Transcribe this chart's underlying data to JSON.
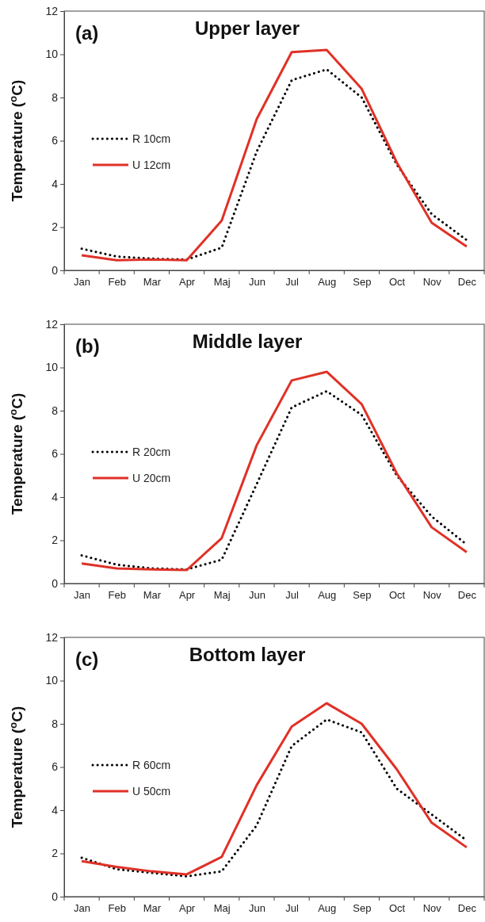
{
  "chart_data": [
    {
      "type": "line",
      "title": "Upper layer",
      "annotations": [
        "(a)"
      ],
      "ylabel": "Temperature ($^{o}$C)",
      "categories": [
        "Jan",
        "Feb",
        "Mar",
        "Apr",
        "Maj",
        "Jun",
        "Jul",
        "Aug",
        "Sep",
        "Oct",
        "Nov",
        "Dec"
      ],
      "ylim": [
        0,
        12
      ],
      "yticks": [
        0,
        2,
        4,
        6,
        8,
        10,
        12
      ],
      "grid": false,
      "legend": "left",
      "series": [
        {
          "name": "R 10cm",
          "color": "#000000",
          "line_style": "dotted",
          "values": [
            1.0,
            0.64,
            0.54,
            0.5,
            1.05,
            5.5,
            8.8,
            9.3,
            8.0,
            4.9,
            2.6,
            1.4
          ]
        },
        {
          "name": "U 12cm",
          "color": "#e03127",
          "line_style": "solid",
          "values": [
            0.7,
            0.47,
            0.5,
            0.47,
            2.3,
            7.0,
            10.1,
            10.2,
            8.4,
            5.0,
            2.2,
            1.1
          ]
        }
      ]
    },
    {
      "type": "line",
      "title": "Middle layer",
      "annotations": [
        "(b)"
      ],
      "ylabel": "Temperature ($^{o}$C)",
      "categories": [
        "Jan",
        "Feb",
        "Mar",
        "Apr",
        "Maj",
        "Jun",
        "Jul",
        "Aug",
        "Sep",
        "Oct",
        "Nov",
        "Dec"
      ],
      "ylim": [
        0,
        12
      ],
      "yticks": [
        0,
        2,
        4,
        6,
        8,
        10,
        12
      ],
      "grid": false,
      "legend": "left",
      "series": [
        {
          "name": "R 20cm",
          "color": "#000000",
          "line_style": "dotted",
          "values": [
            1.3,
            0.87,
            0.7,
            0.65,
            1.1,
            4.6,
            8.15,
            8.9,
            7.8,
            5.0,
            3.1,
            1.8
          ]
        },
        {
          "name": "U 20cm",
          "color": "#e03127",
          "line_style": "solid",
          "values": [
            0.93,
            0.7,
            0.65,
            0.62,
            2.1,
            6.4,
            9.4,
            9.8,
            8.3,
            5.1,
            2.6,
            1.45
          ]
        }
      ]
    },
    {
      "type": "line",
      "title": "Bottom layer",
      "annotations": [
        "(c)"
      ],
      "ylabel": "Temperature ($^{o}$C)",
      "categories": [
        "Jan",
        "Feb",
        "Mar",
        "Apr",
        "Maj",
        "Jun",
        "Jul",
        "Aug",
        "Sep",
        "Oct",
        "Nov",
        "Dec"
      ],
      "ylim": [
        0,
        12
      ],
      "yticks": [
        0,
        2,
        4,
        6,
        8,
        10,
        12
      ],
      "grid": false,
      "legend": "left",
      "series": [
        {
          "name": "R 60cm",
          "color": "#000000",
          "line_style": "dotted",
          "values": [
            1.8,
            1.27,
            1.1,
            0.94,
            1.17,
            3.3,
            6.97,
            8.2,
            7.6,
            5.0,
            3.8,
            2.6
          ]
        },
        {
          "name": "U 50cm",
          "color": "#e03127",
          "line_style": "solid",
          "values": [
            1.64,
            1.38,
            1.17,
            1.03,
            1.84,
            5.16,
            7.87,
            8.95,
            8.0,
            5.9,
            3.42,
            2.28
          ]
        }
      ]
    }
  ]
}
